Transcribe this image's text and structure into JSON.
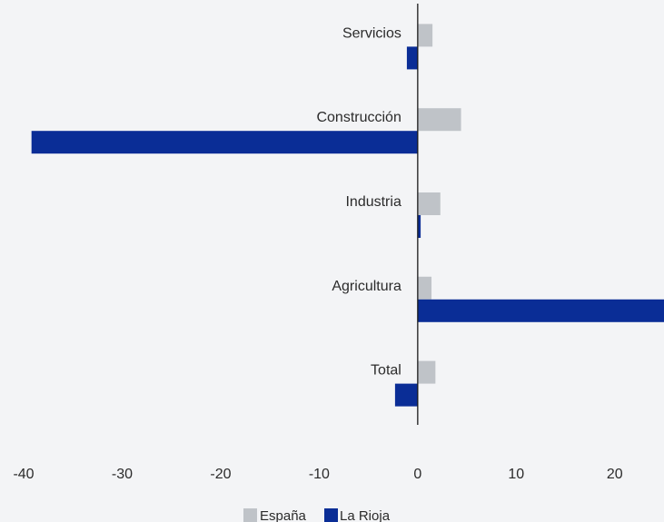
{
  "chart_data": {
    "type": "bar",
    "orientation": "horizontal",
    "categories": [
      "Servicios",
      "Construcción",
      "Industria",
      "Agricultura",
      "Total"
    ],
    "series": [
      {
        "name": "España",
        "values": [
          1.5,
          4.4,
          2.3,
          1.4,
          1.8
        ]
      },
      {
        "name": "La Rioja",
        "values": [
          -1.1,
          -39.2,
          0.3,
          25.2,
          -2.3
        ]
      }
    ],
    "xlim": [
      -40,
      25
    ],
    "xticks": [
      -40,
      -30,
      -20,
      -10,
      0,
      10,
      20
    ],
    "tick_labels": [
      "-40",
      "-30",
      "-20",
      "-10",
      "0",
      "10",
      "20"
    ],
    "xlabel": "",
    "ylabel": "",
    "title": "",
    "grid": false,
    "legend_position": "bottom-center"
  },
  "colors": {
    "España": "#bfc3c8",
    "La Rioja": "#0a2d96",
    "axis": "#1a1a1a"
  }
}
